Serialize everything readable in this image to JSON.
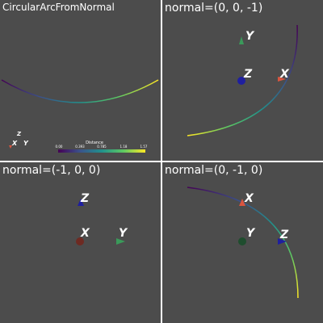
{
  "viewports": {
    "top_left": {
      "title": "CircularArcFromNormal",
      "axes": {
        "x": "X",
        "y": "Y",
        "z": "Z"
      },
      "scalar_bar": {
        "title": "Distance",
        "ticks": [
          "0.00",
          "0.393",
          "0.785",
          "1.18",
          "1.57"
        ]
      }
    },
    "top_right": {
      "title": "normal=(0, 0, -1)",
      "axes": {
        "x": "X",
        "y": "Y",
        "z": "Z"
      }
    },
    "bottom_left": {
      "title": "normal=(-1, 0, 0)",
      "axes": {
        "x": "X",
        "y": "Y",
        "z": "Z"
      }
    },
    "bottom_right": {
      "title": "normal=(0, -1, 0)",
      "axes": {
        "x": "X",
        "y": "Y",
        "z": "Z"
      }
    }
  },
  "colors": {
    "background": "#4c4c4c",
    "divider": "#ffffff",
    "x_marker": "#d9553f",
    "y_marker": "#3a9a5a",
    "z_marker": "#1f1fa0",
    "x_marker_dim": "#6e2a22",
    "y_marker_dim": "#1f4d2e",
    "z_marker_dim": "#141460",
    "viridis": [
      "#440154",
      "#3b528b",
      "#21918c",
      "#5ec962",
      "#fde725"
    ]
  }
}
